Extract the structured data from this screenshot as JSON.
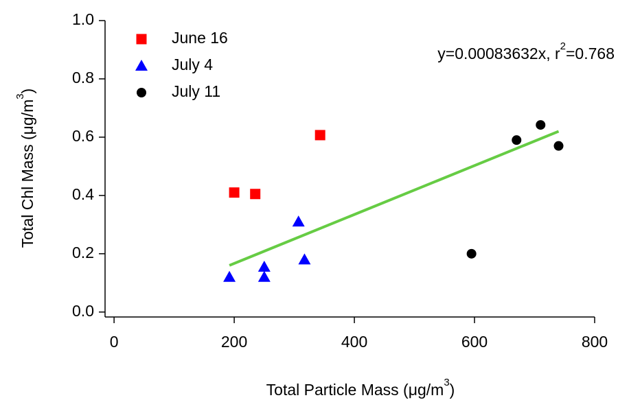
{
  "chart_data": {
    "type": "scatter",
    "x_label": [
      "Total Particle Mass (μg/m",
      "3",
      ")"
    ],
    "y_label": [
      "Total Chl Mass (μg/m",
      "3",
      ")"
    ],
    "annotation": [
      "y=0.00083632x, r",
      "2",
      "=0.768"
    ],
    "xlim": [
      -15,
      800
    ],
    "ylim": [
      -0.017,
      1.0
    ],
    "xticks": [
      0,
      200,
      400,
      600,
      800
    ],
    "yticks": [
      {
        "value": 0,
        "label": "0.0"
      },
      0.2,
      0.4,
      0.6,
      0.8,
      {
        "value": 1,
        "label": "1.0"
      }
    ],
    "legend": "top-left",
    "series": [
      {
        "name": "June 16",
        "color": "#ff0000",
        "marker": "square",
        "x": [
          200,
          235,
          343
        ],
        "values": [
          0.41,
          0.405,
          0.607
        ]
      },
      {
        "name": "July 4",
        "color": "#0000ff",
        "marker": "triangle",
        "x": [
          192,
          250,
          250,
          307,
          317
        ],
        "values": [
          0.12,
          0.155,
          0.12,
          0.31,
          0.18
        ]
      },
      {
        "name": "July 11",
        "color": "#000000",
        "marker": "circle",
        "x": [
          595,
          670,
          710,
          740
        ],
        "values": [
          0.2,
          0.59,
          0.642,
          0.57
        ]
      }
    ],
    "fit": {
      "color": "#66cc44",
      "x": [
        192,
        740
      ],
      "values": [
        0.16,
        0.62
      ]
    }
  }
}
